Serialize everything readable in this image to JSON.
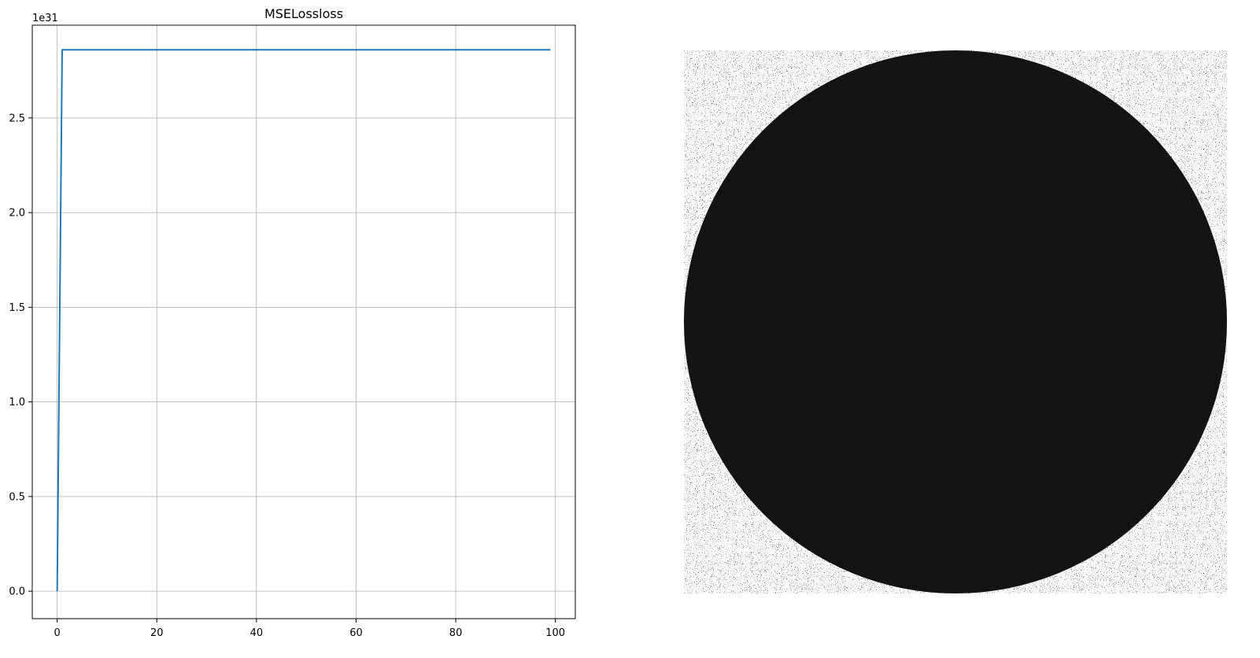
{
  "figure": {
    "panels": [
      "loss-plot",
      "image-panel"
    ]
  },
  "chart_data": [
    {
      "type": "line",
      "title": "MSELossloss",
      "xlabel": "",
      "ylabel": "",
      "y_scale_label": "1e31",
      "grid": true,
      "xlim": [
        -5,
        104
      ],
      "ylim": [
        -0.145,
        2.99
      ],
      "x_ticks": [
        0,
        20,
        40,
        60,
        80,
        100
      ],
      "x_tick_labels": [
        "0",
        "20",
        "40",
        "60",
        "80",
        "100"
      ],
      "y_ticks": [
        0.0,
        0.5,
        1.0,
        1.5,
        2.0,
        2.5
      ],
      "y_tick_labels": [
        "0.0",
        "0.5",
        "1.0",
        "1.5",
        "2.0",
        "2.5"
      ],
      "series": [
        {
          "color": "#1f77b4",
          "x": [
            0,
            1,
            99
          ],
          "y": [
            0.0,
            2.86,
            2.86
          ]
        }
      ]
    },
    {
      "type": "heatmap",
      "content": "grayscale noise image with large dark disc centered",
      "colors": {
        "disc": "#101010",
        "noise_light": "#f2f2f2",
        "noise_dark": "#1a1a1a"
      }
    }
  ]
}
